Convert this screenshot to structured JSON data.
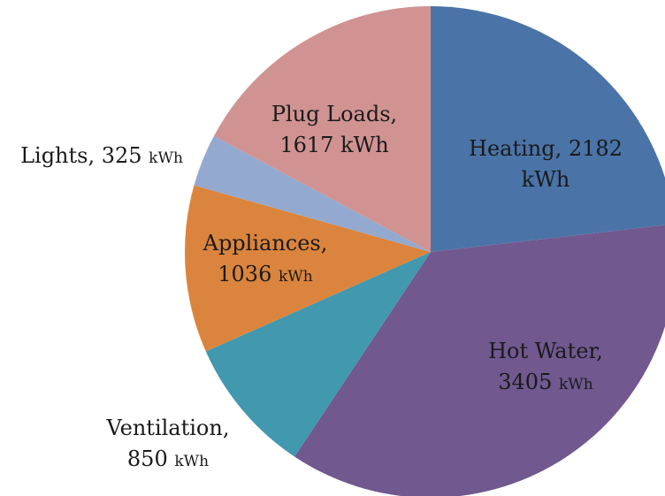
{
  "chart_data": {
    "type": "pie",
    "values": [
      2182,
      3405,
      850,
      1036,
      325,
      1617
    ],
    "value_labels": [
      "Heating, 2182\nkWh",
      "Hot Water,\n3405 kWh",
      "Ventilation,\n850 kWh",
      "Appliances,\n1036 kWh",
      "Lights, 325 kWh",
      "Plug Loads,\n1617 kWh"
    ],
    "colors": [
      "#4a74a8",
      "#71588f",
      "#4198af",
      "#db843d",
      "#93a9cf",
      "#d09392"
    ]
  }
}
